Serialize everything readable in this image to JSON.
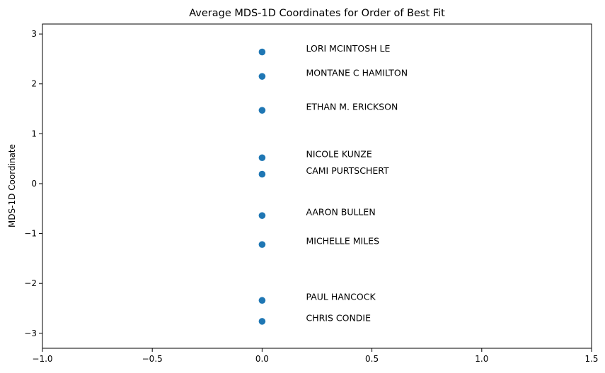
{
  "chart_data": {
    "type": "scatter",
    "title": "Average MDS-1D Coordinates for Order of Best Fit",
    "xlabel": "",
    "ylabel": "MDS-1D Coordinate",
    "xlim": [
      -1.0,
      1.5
    ],
    "ylim": [
      -3.3,
      3.2
    ],
    "x_ticks": [
      -1.0,
      -0.5,
      0.0,
      0.5,
      1.0,
      1.5
    ],
    "x_tick_labels": [
      "−1.0",
      "−0.5",
      "0.0",
      "0.5",
      "1.0",
      "1.5"
    ],
    "y_ticks": [
      -3,
      -2,
      -1,
      0,
      1,
      2,
      3
    ],
    "y_tick_labels": [
      "−3",
      "−2",
      "−1",
      "0",
      "1",
      "2",
      "3"
    ],
    "grid": false,
    "label_x_offset": 0.2,
    "marker_color": "#1f77b4",
    "points": [
      {
        "x": 0,
        "y": 2.64,
        "label": "LORI MCINTOSH LE"
      },
      {
        "x": 0,
        "y": 2.15,
        "label": "MONTANE C HAMILTON"
      },
      {
        "x": 0,
        "y": 1.47,
        "label": "ETHAN M. ERICKSON"
      },
      {
        "x": 0,
        "y": 0.52,
        "label": "NICOLE KUNZE"
      },
      {
        "x": 0,
        "y": 0.19,
        "label": "CAMI PURTSCHERT"
      },
      {
        "x": 0,
        "y": -0.64,
        "label": "AARON BULLEN"
      },
      {
        "x": 0,
        "y": -1.22,
        "label": "MICHELLE MILES"
      },
      {
        "x": 0,
        "y": -2.34,
        "label": "PAUL HANCOCK"
      },
      {
        "x": 0,
        "y": -2.76,
        "label": "CHRIS CONDIE"
      }
    ]
  }
}
